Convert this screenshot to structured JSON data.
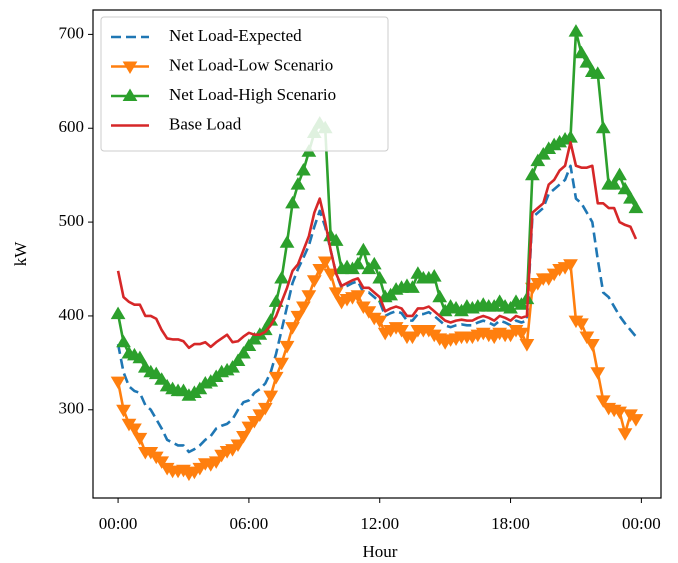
{
  "chart_data": {
    "type": "line",
    "xlabel": "Hour",
    "ylabel": "kW",
    "x": [
      0,
      0.25,
      0.5,
      0.75,
      1,
      1.25,
      1.5,
      1.75,
      2,
      2.25,
      2.5,
      2.75,
      3,
      3.25,
      3.5,
      3.75,
      4,
      4.25,
      4.5,
      4.75,
      5,
      5.25,
      5.5,
      5.75,
      6,
      6.25,
      6.5,
      6.75,
      7,
      7.25,
      7.5,
      7.75,
      8,
      8.25,
      8.5,
      8.75,
      9,
      9.25,
      9.5,
      9.75,
      10,
      10.25,
      10.5,
      10.75,
      11,
      11.25,
      11.5,
      11.75,
      12,
      12.25,
      12.5,
      12.75,
      13,
      13.25,
      13.5,
      13.75,
      14,
      14.25,
      14.5,
      14.75,
      15,
      15.25,
      15.5,
      15.75,
      16,
      16.25,
      16.5,
      16.75,
      17,
      17.25,
      17.5,
      17.75,
      18,
      18.25,
      18.5,
      18.75,
      19,
      19.25,
      19.5,
      19.75,
      20,
      20.25,
      20.5,
      20.75,
      21,
      21.25,
      21.5,
      21.75,
      22,
      22.25,
      22.5,
      22.75,
      23,
      23.25,
      23.5,
      23.75
    ],
    "series": [
      {
        "name": "Net Load-Expected",
        "color": "#1f77b4",
        "linestyle": "dashed",
        "marker": "none",
        "values": [
          370,
          340,
          325,
          320,
          318,
          305,
          300,
          290,
          280,
          268,
          265,
          262,
          262,
          255,
          258,
          262,
          268,
          272,
          280,
          283,
          285,
          290,
          300,
          308,
          310,
          318,
          322,
          328,
          340,
          360,
          385,
          410,
          435,
          450,
          462,
          475,
          495,
          512,
          495,
          470,
          445,
          430,
          432,
          435,
          437,
          425,
          425,
          420,
          415,
          400,
          403,
          405,
          403,
          395,
          395,
          402,
          402,
          404,
          400,
          395,
          390,
          388,
          390,
          391,
          390,
          390,
          393,
          395,
          393,
          390,
          395,
          393,
          390,
          395,
          393,
          395,
          505,
          510,
          515,
          530,
          535,
          540,
          545,
          560,
          525,
          520,
          510,
          500,
          460,
          425,
          420,
          410,
          400,
          392,
          385,
          378
        ]
      },
      {
        "name": "Net Load-Low Scenario",
        "color": "#ff7f0e",
        "linestyle": "solid",
        "marker": "triangle-down",
        "values": [
          330,
          300,
          285,
          280,
          270,
          255,
          255,
          250,
          245,
          238,
          235,
          235,
          236,
          232,
          234,
          238,
          243,
          242,
          245,
          252,
          256,
          258,
          263,
          272,
          282,
          288,
          295,
          302,
          315,
          335,
          350,
          368,
          388,
          400,
          410,
          422,
          438,
          450,
          458,
          445,
          425,
          415,
          418,
          420,
          422,
          410,
          405,
          398,
          395,
          382,
          385,
          388,
          385,
          378,
          378,
          385,
          385,
          385,
          380,
          376,
          372,
          375,
          376,
          378,
          378,
          378,
          380,
          382,
          380,
          378,
          382,
          380,
          380,
          385,
          382,
          370,
          430,
          435,
          440,
          440,
          445,
          450,
          452,
          455,
          395,
          392,
          378,
          370,
          340,
          310,
          302,
          300,
          298,
          275,
          295,
          290
        ]
      },
      {
        "name": "Net Load-High Scenario",
        "color": "#2ca02c",
        "linestyle": "solid",
        "marker": "triangle-up",
        "values": [
          402,
          372,
          360,
          358,
          355,
          345,
          340,
          338,
          332,
          325,
          322,
          320,
          320,
          315,
          318,
          322,
          328,
          330,
          335,
          340,
          342,
          345,
          352,
          360,
          368,
          375,
          380,
          385,
          395,
          415,
          440,
          478,
          520,
          540,
          555,
          575,
          595,
          605,
          600,
          485,
          480,
          450,
          452,
          450,
          455,
          470,
          450,
          455,
          440,
          420,
          422,
          428,
          430,
          432,
          430,
          445,
          440,
          440,
          442,
          420,
          405,
          410,
          408,
          405,
          410,
          408,
          410,
          412,
          410,
          410,
          415,
          410,
          408,
          415,
          412,
          418,
          550,
          565,
          572,
          578,
          582,
          585,
          588,
          590,
          703,
          680,
          670,
          660,
          658,
          600,
          540,
          540,
          550,
          535,
          525,
          515
        ]
      },
      {
        "name": "Base Load",
        "color": "#d62728",
        "linestyle": "solid",
        "marker": "none",
        "values": [
          448,
          420,
          415,
          412,
          412,
          400,
          400,
          397,
          385,
          376,
          375,
          375,
          373,
          366,
          370,
          370,
          372,
          367,
          372,
          376,
          380,
          372,
          373,
          378,
          382,
          380,
          380,
          383,
          390,
          400,
          415,
          430,
          448,
          455,
          470,
          485,
          510,
          525,
          500,
          470,
          445,
          432,
          435,
          438,
          440,
          430,
          430,
          425,
          420,
          405,
          408,
          410,
          408,
          400,
          400,
          408,
          408,
          410,
          405,
          400,
          395,
          393,
          395,
          396,
          395,
          395,
          398,
          400,
          398,
          395,
          400,
          398,
          395,
          400,
          398,
          400,
          510,
          515,
          520,
          540,
          545,
          555,
          560,
          585,
          560,
          558,
          558,
          560,
          520,
          520,
          515,
          515,
          500,
          497,
          495,
          482
        ]
      }
    ],
    "xlim": [
      -1.15,
      24.9
    ],
    "ylim": [
      206,
      726
    ],
    "xticks": [
      {
        "value": 0,
        "label": "00:00"
      },
      {
        "value": 6,
        "label": "06:00"
      },
      {
        "value": 12,
        "label": "12:00"
      },
      {
        "value": 18,
        "label": "18:00"
      },
      {
        "value": 24,
        "label": "00:00"
      }
    ],
    "yticks": [
      300,
      400,
      500,
      600,
      700
    ],
    "grid": false,
    "legend": "upper left"
  }
}
